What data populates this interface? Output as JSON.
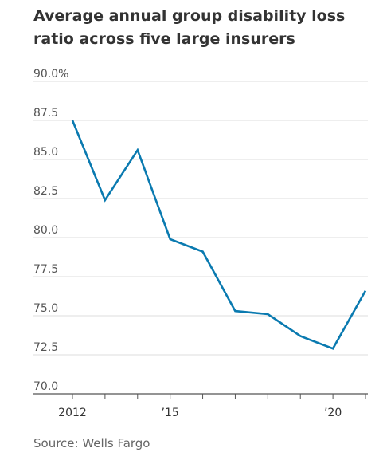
{
  "chart_data": {
    "type": "line",
    "title": "Average annual group disability loss ratio across five large insurers",
    "source": "Source: Wells Fargo",
    "xlabel": "",
    "ylabel": "",
    "x": [
      2012,
      2013,
      2014,
      2015,
      2016,
      2017,
      2018,
      2019,
      2020,
      2021
    ],
    "x_tick_labels": [
      {
        "x": 2012,
        "label": "2012"
      },
      {
        "x": 2015,
        "label": "’15"
      },
      {
        "x": 2020,
        "label": "’20"
      }
    ],
    "ylim": [
      70.0,
      90.0
    ],
    "y_ticks": [
      90.0,
      87.5,
      85.0,
      82.5,
      80.0,
      77.5,
      75.0,
      72.5,
      70.0
    ],
    "y_tick_labels": [
      "90.0%",
      "87.5",
      "85.0",
      "82.5",
      "80.0",
      "77.5",
      "75.0",
      "72.5",
      "70.0"
    ],
    "grid": true,
    "series": [
      {
        "values": [
          87.5,
          82.4,
          85.6,
          79.9,
          79.1,
          75.3,
          75.1,
          73.7,
          72.9,
          76.6
        ],
        "color": "#0a7ab0"
      }
    ],
    "colors": {
      "grid": "#dddddd",
      "axis": "#555555",
      "line": "#0a7ab0"
    }
  }
}
